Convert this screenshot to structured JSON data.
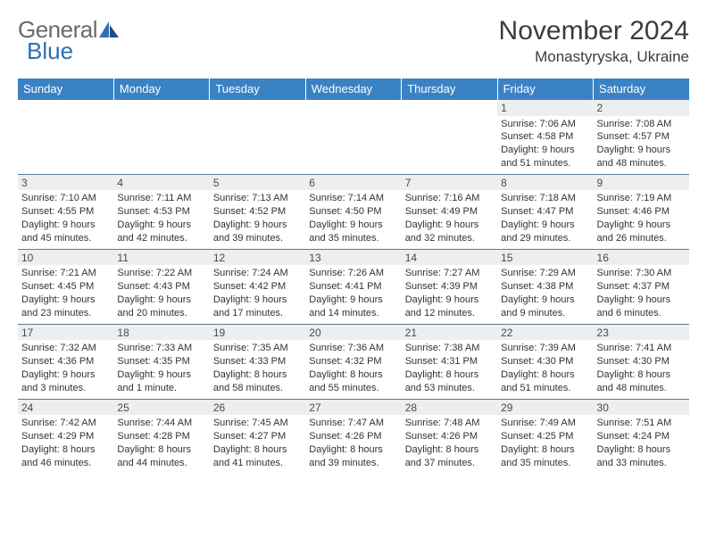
{
  "logo": {
    "text1": "General",
    "text2": "Blue"
  },
  "title": "November 2024",
  "location": "Monastyryska, Ukraine",
  "colors": {
    "header_bg": "#3b82c4",
    "header_text": "#ffffff",
    "daynum_bg": "#eceeef",
    "border": "#5a7a9a",
    "logo_gray": "#6a6a6a",
    "logo_blue": "#2f6fb0",
    "text": "#333333",
    "background": "#ffffff"
  },
  "weekdays": [
    "Sunday",
    "Monday",
    "Tuesday",
    "Wednesday",
    "Thursday",
    "Friday",
    "Saturday"
  ],
  "weeks": [
    {
      "nums": [
        "",
        "",
        "",
        "",
        "",
        "1",
        "2"
      ],
      "cells": [
        {},
        {},
        {},
        {},
        {},
        {
          "sunrise": "Sunrise: 7:06 AM",
          "sunset": "Sunset: 4:58 PM",
          "day1": "Daylight: 9 hours",
          "day2": "and 51 minutes."
        },
        {
          "sunrise": "Sunrise: 7:08 AM",
          "sunset": "Sunset: 4:57 PM",
          "day1": "Daylight: 9 hours",
          "day2": "and 48 minutes."
        }
      ]
    },
    {
      "nums": [
        "3",
        "4",
        "5",
        "6",
        "7",
        "8",
        "9"
      ],
      "cells": [
        {
          "sunrise": "Sunrise: 7:10 AM",
          "sunset": "Sunset: 4:55 PM",
          "day1": "Daylight: 9 hours",
          "day2": "and 45 minutes."
        },
        {
          "sunrise": "Sunrise: 7:11 AM",
          "sunset": "Sunset: 4:53 PM",
          "day1": "Daylight: 9 hours",
          "day2": "and 42 minutes."
        },
        {
          "sunrise": "Sunrise: 7:13 AM",
          "sunset": "Sunset: 4:52 PM",
          "day1": "Daylight: 9 hours",
          "day2": "and 39 minutes."
        },
        {
          "sunrise": "Sunrise: 7:14 AM",
          "sunset": "Sunset: 4:50 PM",
          "day1": "Daylight: 9 hours",
          "day2": "and 35 minutes."
        },
        {
          "sunrise": "Sunrise: 7:16 AM",
          "sunset": "Sunset: 4:49 PM",
          "day1": "Daylight: 9 hours",
          "day2": "and 32 minutes."
        },
        {
          "sunrise": "Sunrise: 7:18 AM",
          "sunset": "Sunset: 4:47 PM",
          "day1": "Daylight: 9 hours",
          "day2": "and 29 minutes."
        },
        {
          "sunrise": "Sunrise: 7:19 AM",
          "sunset": "Sunset: 4:46 PM",
          "day1": "Daylight: 9 hours",
          "day2": "and 26 minutes."
        }
      ]
    },
    {
      "nums": [
        "10",
        "11",
        "12",
        "13",
        "14",
        "15",
        "16"
      ],
      "cells": [
        {
          "sunrise": "Sunrise: 7:21 AM",
          "sunset": "Sunset: 4:45 PM",
          "day1": "Daylight: 9 hours",
          "day2": "and 23 minutes."
        },
        {
          "sunrise": "Sunrise: 7:22 AM",
          "sunset": "Sunset: 4:43 PM",
          "day1": "Daylight: 9 hours",
          "day2": "and 20 minutes."
        },
        {
          "sunrise": "Sunrise: 7:24 AM",
          "sunset": "Sunset: 4:42 PM",
          "day1": "Daylight: 9 hours",
          "day2": "and 17 minutes."
        },
        {
          "sunrise": "Sunrise: 7:26 AM",
          "sunset": "Sunset: 4:41 PM",
          "day1": "Daylight: 9 hours",
          "day2": "and 14 minutes."
        },
        {
          "sunrise": "Sunrise: 7:27 AM",
          "sunset": "Sunset: 4:39 PM",
          "day1": "Daylight: 9 hours",
          "day2": "and 12 minutes."
        },
        {
          "sunrise": "Sunrise: 7:29 AM",
          "sunset": "Sunset: 4:38 PM",
          "day1": "Daylight: 9 hours",
          "day2": "and 9 minutes."
        },
        {
          "sunrise": "Sunrise: 7:30 AM",
          "sunset": "Sunset: 4:37 PM",
          "day1": "Daylight: 9 hours",
          "day2": "and 6 minutes."
        }
      ]
    },
    {
      "nums": [
        "17",
        "18",
        "19",
        "20",
        "21",
        "22",
        "23"
      ],
      "cells": [
        {
          "sunrise": "Sunrise: 7:32 AM",
          "sunset": "Sunset: 4:36 PM",
          "day1": "Daylight: 9 hours",
          "day2": "and 3 minutes."
        },
        {
          "sunrise": "Sunrise: 7:33 AM",
          "sunset": "Sunset: 4:35 PM",
          "day1": "Daylight: 9 hours",
          "day2": "and 1 minute."
        },
        {
          "sunrise": "Sunrise: 7:35 AM",
          "sunset": "Sunset: 4:33 PM",
          "day1": "Daylight: 8 hours",
          "day2": "and 58 minutes."
        },
        {
          "sunrise": "Sunrise: 7:36 AM",
          "sunset": "Sunset: 4:32 PM",
          "day1": "Daylight: 8 hours",
          "day2": "and 55 minutes."
        },
        {
          "sunrise": "Sunrise: 7:38 AM",
          "sunset": "Sunset: 4:31 PM",
          "day1": "Daylight: 8 hours",
          "day2": "and 53 minutes."
        },
        {
          "sunrise": "Sunrise: 7:39 AM",
          "sunset": "Sunset: 4:30 PM",
          "day1": "Daylight: 8 hours",
          "day2": "and 51 minutes."
        },
        {
          "sunrise": "Sunrise: 7:41 AM",
          "sunset": "Sunset: 4:30 PM",
          "day1": "Daylight: 8 hours",
          "day2": "and 48 minutes."
        }
      ]
    },
    {
      "nums": [
        "24",
        "25",
        "26",
        "27",
        "28",
        "29",
        "30"
      ],
      "cells": [
        {
          "sunrise": "Sunrise: 7:42 AM",
          "sunset": "Sunset: 4:29 PM",
          "day1": "Daylight: 8 hours",
          "day2": "and 46 minutes."
        },
        {
          "sunrise": "Sunrise: 7:44 AM",
          "sunset": "Sunset: 4:28 PM",
          "day1": "Daylight: 8 hours",
          "day2": "and 44 minutes."
        },
        {
          "sunrise": "Sunrise: 7:45 AM",
          "sunset": "Sunset: 4:27 PM",
          "day1": "Daylight: 8 hours",
          "day2": "and 41 minutes."
        },
        {
          "sunrise": "Sunrise: 7:47 AM",
          "sunset": "Sunset: 4:26 PM",
          "day1": "Daylight: 8 hours",
          "day2": "and 39 minutes."
        },
        {
          "sunrise": "Sunrise: 7:48 AM",
          "sunset": "Sunset: 4:26 PM",
          "day1": "Daylight: 8 hours",
          "day2": "and 37 minutes."
        },
        {
          "sunrise": "Sunrise: 7:49 AM",
          "sunset": "Sunset: 4:25 PM",
          "day1": "Daylight: 8 hours",
          "day2": "and 35 minutes."
        },
        {
          "sunrise": "Sunrise: 7:51 AM",
          "sunset": "Sunset: 4:24 PM",
          "day1": "Daylight: 8 hours",
          "day2": "and 33 minutes."
        }
      ]
    }
  ]
}
